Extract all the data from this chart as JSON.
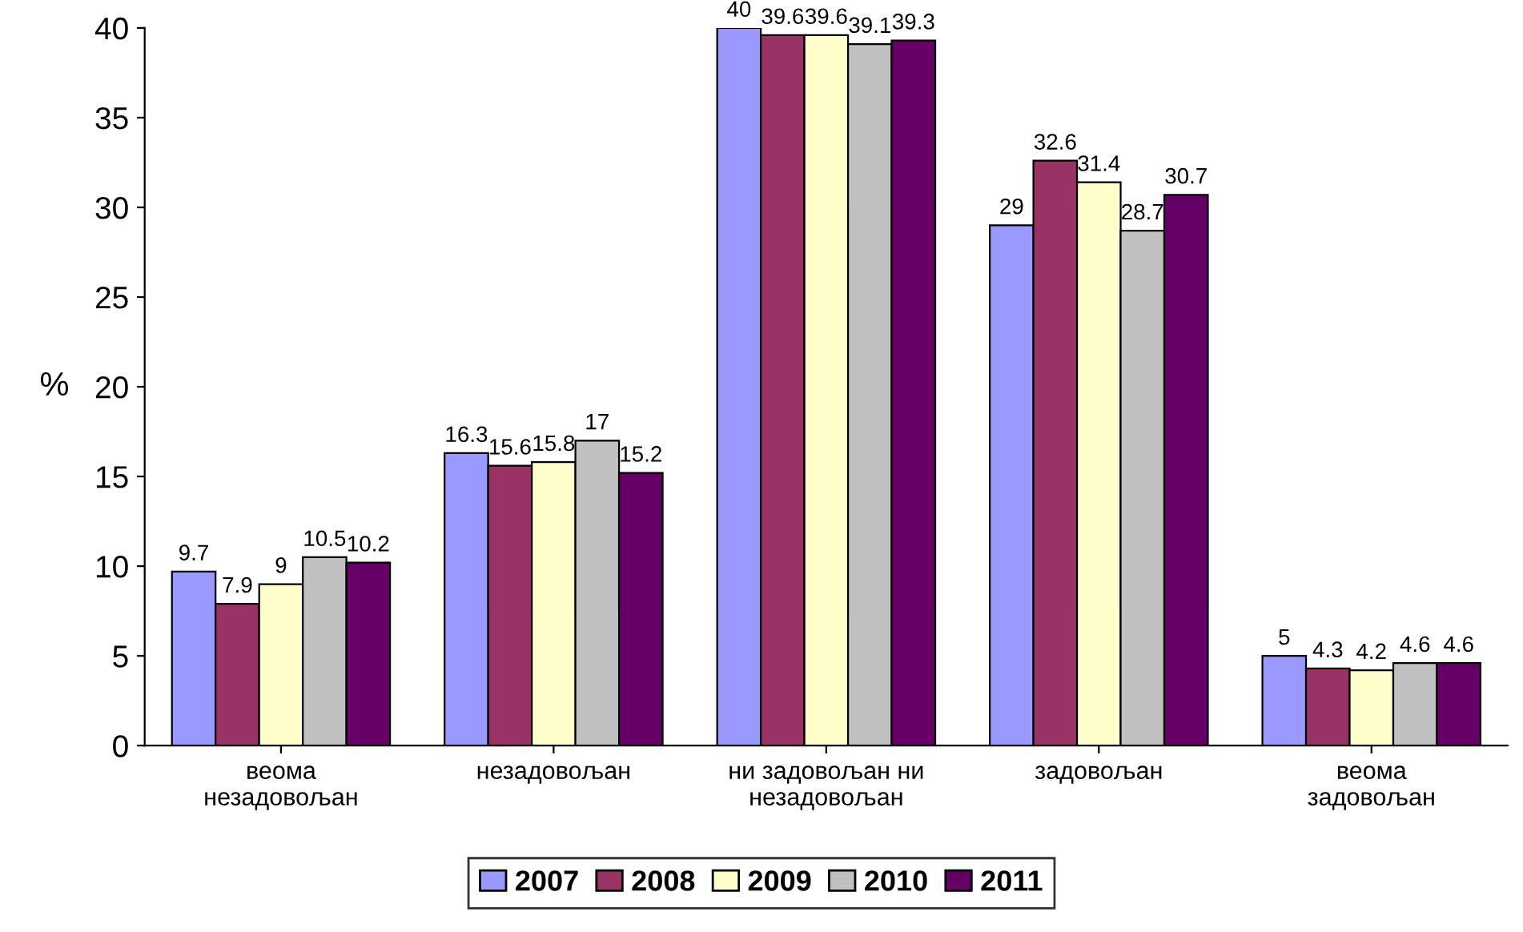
{
  "chart_data": {
    "type": "bar",
    "ylabel": "%",
    "categories": [
      "веома\nнезадовољан",
      "незадовољан",
      "ни задовољан ни\nнезадовољан",
      "задовољан",
      "веома\nзадовољан"
    ],
    "series": [
      {
        "name": "2007",
        "color": "#9999ff",
        "values": [
          9.7,
          16.3,
          40,
          29,
          5
        ]
      },
      {
        "name": "2008",
        "color": "#993366",
        "values": [
          7.9,
          15.6,
          39.6,
          32.6,
          4.3
        ]
      },
      {
        "name": "2009",
        "color": "#ffffcc",
        "values": [
          9,
          15.8,
          39.6,
          31.4,
          4.2
        ]
      },
      {
        "name": "2010",
        "color": "#c0c0c0",
        "values": [
          10.5,
          17,
          39.1,
          28.7,
          4.6
        ]
      },
      {
        "name": "2011",
        "color": "#660066",
        "values": [
          10.2,
          15.2,
          39.3,
          30.7,
          4.6
        ]
      }
    ],
    "ylim": [
      0,
      40
    ],
    "yticks": [
      0,
      5,
      10,
      15,
      20,
      25,
      30,
      35,
      40
    ],
    "grid": false,
    "legend": "bottom",
    "data_labels": true
  }
}
